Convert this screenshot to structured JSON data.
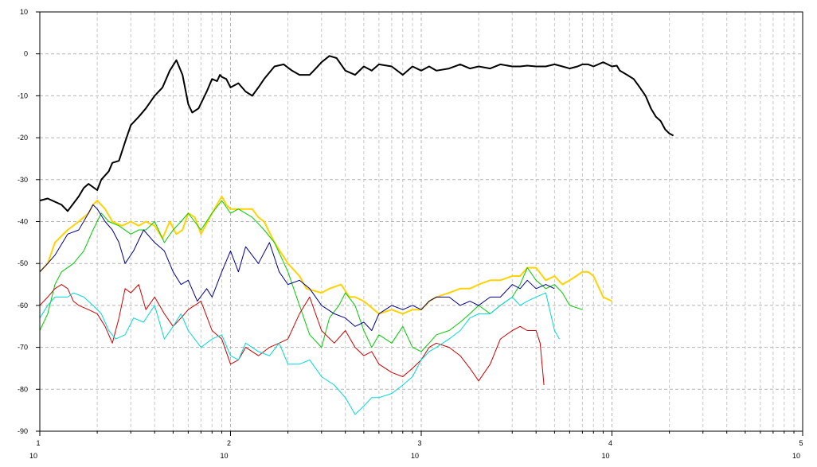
{
  "chart_data": {
    "type": "line",
    "title": "",
    "xlabel": "",
    "ylabel": "",
    "x_scale": "log",
    "xlim": [
      10,
      100000
    ],
    "ylim": [
      -90,
      10
    ],
    "grid": true,
    "legend": "none",
    "y_ticks": [
      "10",
      "0",
      "-10",
      "-20",
      "-30",
      "-40",
      "-50",
      "-60",
      "-70",
      "-80",
      "-90"
    ],
    "x_ticks": [
      {
        "base": "10",
        "exp": "1"
      },
      {
        "base": "10",
        "exp": "2"
      },
      {
        "base": "10",
        "exp": "3"
      },
      {
        "base": "10",
        "exp": "4"
      },
      {
        "base": "10",
        "exp": "5"
      }
    ],
    "series": [
      {
        "color": "#000000",
        "width": 2,
        "x": [
          10,
          11,
          13,
          14,
          16,
          17,
          18,
          20,
          21,
          23,
          24,
          26,
          28,
          30,
          33,
          36,
          40,
          44,
          48,
          52,
          56,
          60,
          63,
          68,
          75,
          80,
          85,
          88,
          90,
          95,
          100,
          110,
          120,
          130,
          140,
          150,
          170,
          190,
          210,
          230,
          260,
          280,
          300,
          330,
          360,
          400,
          450,
          500,
          550,
          600,
          700,
          800,
          900,
          1000,
          1100,
          1200,
          1400,
          1600,
          1800,
          2000,
          2300,
          2600,
          3000,
          3300,
          3600,
          4000,
          4500,
          5000,
          5500,
          6000,
          6600,
          7000,
          7500,
          8000,
          9000,
          10000,
          10600,
          11000,
          12000,
          13000,
          14000,
          15000,
          16000,
          17000,
          18000,
          19000,
          20000,
          21000
        ],
        "y": [
          -35,
          -34.5,
          -36,
          -37.5,
          -34,
          -32,
          -31,
          -32.5,
          -30,
          -28,
          -26,
          -25.5,
          -21,
          -17,
          -15,
          -13,
          -10,
          -8,
          -4,
          -1.5,
          -5,
          -12,
          -14,
          -13,
          -9,
          -6,
          -6.5,
          -5,
          -5.5,
          -6,
          -8,
          -7,
          -9,
          -10,
          -8,
          -6,
          -3,
          -2.5,
          -4,
          -5,
          -5,
          -3.5,
          -2,
          -0.5,
          -1,
          -4,
          -5,
          -3,
          -4,
          -2.5,
          -3,
          -5,
          -3,
          -4,
          -3,
          -4,
          -3.5,
          -2.5,
          -3.5,
          -3,
          -3.5,
          -2.5,
          -3,
          -3,
          -2.8,
          -3,
          -3,
          -2.5,
          -3,
          -3.5,
          -3,
          -2.5,
          -2.5,
          -3,
          -2,
          -3,
          -2.8,
          -4,
          -5,
          -6,
          -8,
          -10,
          -13,
          -15,
          -16,
          -18,
          -19,
          -19.5
        ]
      },
      {
        "color": "#ffd200",
        "width": 2,
        "x": [
          10,
          11,
          12,
          14,
          16,
          18,
          19,
          20,
          22,
          24,
          27,
          30,
          33,
          36,
          40,
          44,
          48,
          52,
          56,
          60,
          65,
          70,
          80,
          90,
          95,
          100,
          110,
          120,
          130,
          140,
          150,
          170,
          200,
          230,
          250,
          300,
          330,
          380,
          420,
          450,
          500,
          600,
          700,
          800,
          900,
          1000,
          1100,
          1200,
          1400,
          1600,
          1800,
          2000,
          2300,
          2600,
          3000,
          3300,
          3600,
          4000,
          4500,
          5000,
          5500,
          6000,
          6500,
          7000,
          7500,
          8000,
          9000,
          10000
        ],
        "y": [
          -52,
          -50,
          -45,
          -42,
          -40,
          -38,
          -36,
          -35,
          -37,
          -40,
          -41,
          -40,
          -41,
          -40,
          -41,
          -44,
          -40,
          -43,
          -42,
          -38,
          -39,
          -43,
          -38,
          -34,
          -36,
          -37,
          -37,
          -37,
          -37,
          -39,
          -40,
          -45,
          -50,
          -53,
          -56,
          -57,
          -56,
          -55,
          -58,
          -58,
          -59,
          -62,
          -61,
          -62,
          -61,
          -61,
          -59,
          -58,
          -57,
          -56,
          -56,
          -55,
          -54,
          -54,
          -53,
          -53,
          -51,
          -51,
          -54,
          -53,
          -55,
          -54,
          -53,
          -52,
          -52,
          -53,
          -58,
          -59
        ]
      },
      {
        "color": "#00cc00",
        "width": 1,
        "x": [
          10,
          11,
          12,
          13,
          15,
          17,
          19,
          21,
          23,
          26,
          30,
          33,
          36,
          40,
          45,
          50,
          55,
          60,
          70,
          80,
          90,
          100,
          110,
          130,
          150,
          170,
          200,
          230,
          260,
          300,
          330,
          370,
          400,
          450,
          500,
          550,
          600,
          700,
          800,
          900,
          1000,
          1100,
          1200,
          1400,
          1600,
          1800,
          2000,
          2300,
          2600,
          3000,
          3300,
          3600,
          4000,
          4500,
          5000,
          5500,
          6000,
          7000
        ],
        "y": [
          -66,
          -62,
          -55,
          -52,
          -50,
          -47,
          -42,
          -38,
          -40,
          -41,
          -43,
          -42,
          -42,
          -40,
          -45,
          -42,
          -40,
          -38,
          -42,
          -38,
          -35,
          -38,
          -37,
          -39,
          -42,
          -45,
          -52,
          -60,
          -67,
          -70,
          -63,
          -60,
          -57,
          -60,
          -66,
          -70,
          -67,
          -69,
          -65,
          -70,
          -71,
          -69,
          -67,
          -66,
          -64,
          -62,
          -60,
          -62,
          -60,
          -58,
          -55,
          -51,
          -54,
          -56,
          -55,
          -57,
          -60,
          -61
        ]
      },
      {
        "color": "#00008c",
        "width": 1,
        "x": [
          10,
          11,
          12,
          14,
          16,
          18,
          19,
          20,
          22,
          24,
          26,
          28,
          31,
          35,
          40,
          45,
          50,
          55,
          60,
          67,
          75,
          80,
          90,
          100,
          110,
          120,
          140,
          160,
          180,
          200,
          230,
          260,
          300,
          350,
          400,
          450,
          500,
          550,
          600,
          700,
          800,
          900,
          1000,
          1100,
          1200,
          1400,
          1600,
          1800,
          2000,
          2300,
          2600,
          3000,
          3300,
          3600,
          4000,
          4500,
          5000
        ],
        "y": [
          -52,
          -50,
          -48,
          -43,
          -42,
          -38,
          -36,
          -37,
          -40,
          -42,
          -45,
          -50,
          -47,
          -42,
          -45,
          -47,
          -52,
          -55,
          -54,
          -59,
          -56,
          -58,
          -52,
          -47,
          -52,
          -46,
          -50,
          -45,
          -52,
          -55,
          -54,
          -56,
          -60,
          -62,
          -63,
          -65,
          -64,
          -66,
          -62,
          -60,
          -61,
          -60,
          -61,
          -59,
          -58,
          -58,
          -60,
          -59,
          -60,
          -58,
          -58,
          -55,
          -56,
          -54,
          -56,
          -55,
          -56
        ]
      },
      {
        "color": "#cc0000",
        "width": 1,
        "x": [
          10,
          11,
          12,
          13,
          14,
          15,
          16,
          18,
          20,
          22,
          24,
          26,
          28,
          30,
          33,
          36,
          40,
          45,
          50,
          55,
          60,
          70,
          80,
          90,
          100,
          110,
          120,
          140,
          160,
          180,
          200,
          230,
          260,
          300,
          350,
          400,
          450,
          500,
          550,
          600,
          700,
          800,
          900,
          1000,
          1100,
          1200,
          1400,
          1600,
          1800,
          2000,
          2300,
          2600,
          3000,
          3300,
          3600,
          4000,
          4200,
          4400
        ],
        "y": [
          -60,
          -58,
          -56,
          -55,
          -56,
          -59,
          -60,
          -61,
          -62,
          -65,
          -69,
          -63,
          -56,
          -57,
          -55,
          -61,
          -58,
          -62,
          -65,
          -63,
          -61,
          -59,
          -66,
          -68,
          -74,
          -73,
          -70,
          -72,
          -70,
          -69,
          -68,
          -62,
          -58,
          -66,
          -69,
          -66,
          -70,
          -72,
          -71,
          -74,
          -76,
          -77,
          -75,
          -73,
          -70,
          -69,
          -70,
          -72,
          -75,
          -78,
          -74,
          -68,
          -66,
          -65,
          -66,
          -66,
          -69,
          -79
        ]
      },
      {
        "color": "#00d8d8",
        "width": 1,
        "x": [
          10,
          11,
          12,
          14,
          15,
          17,
          19,
          21,
          23,
          25,
          28,
          31,
          35,
          40,
          45,
          50,
          55,
          60,
          70,
          80,
          90,
          100,
          110,
          120,
          140,
          160,
          180,
          200,
          230,
          260,
          300,
          350,
          400,
          450,
          500,
          550,
          600,
          700,
          800,
          900,
          1000,
          1100,
          1200,
          1400,
          1600,
          1800,
          2000,
          2300,
          2600,
          3000,
          3300,
          3600,
          4000,
          4500,
          5000,
          5300
        ],
        "y": [
          -63,
          -60,
          -58,
          -58,
          -57,
          -58,
          -60,
          -62,
          -66,
          -68,
          -67,
          -63,
          -64,
          -60,
          -68,
          -65,
          -62,
          -66,
          -70,
          -68,
          -67,
          -72,
          -73,
          -69,
          -71,
          -72,
          -69,
          -74,
          -74,
          -73,
          -77,
          -79,
          -82,
          -86,
          -84,
          -82,
          -82,
          -81,
          -79,
          -77,
          -73,
          -71,
          -70,
          -68,
          -66,
          -63,
          -62,
          -62,
          -60,
          -58,
          -60,
          -59,
          -58,
          -57,
          -66,
          -68
        ]
      }
    ]
  }
}
